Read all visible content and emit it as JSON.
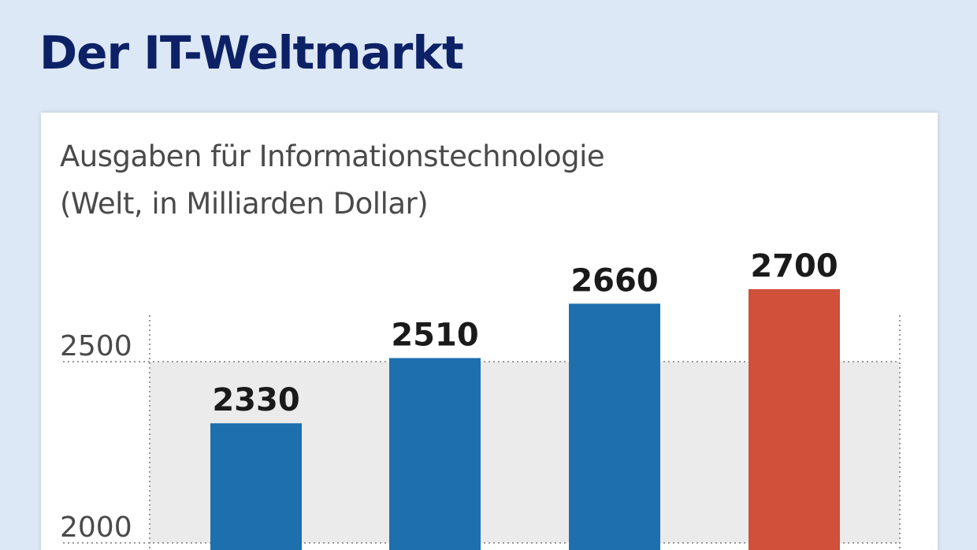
{
  "header": {
    "title": "Der IT-Weltmarkt"
  },
  "chart_data": {
    "type": "bar",
    "subtitle_line1": "Ausgaben für Informationstechnologie",
    "subtitle_line2": "(Welt, in Milliarden Dollar)",
    "categories": [
      "",
      "",
      "",
      ""
    ],
    "values": [
      2330,
      2510,
      2660,
      2700
    ],
    "value_labels": [
      "2330",
      "2510",
      "2660",
      "2700"
    ],
    "bar_colors": [
      "#1d6fae",
      "#1d6fae",
      "#1d6fae",
      "#d0503a"
    ],
    "yticks": [
      2000,
      2500
    ],
    "ytick_labels": [
      "2000",
      "2500"
    ],
    "ylim": [
      1920,
      2760
    ],
    "grid": true,
    "grid_style": "dotted"
  }
}
